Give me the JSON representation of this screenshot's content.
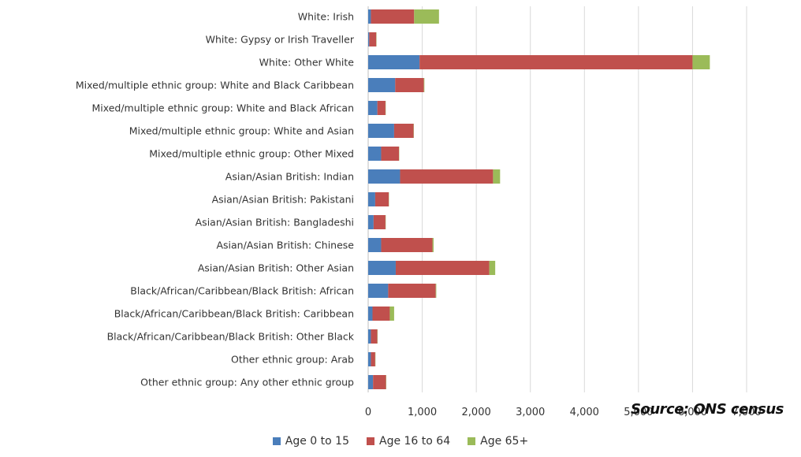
{
  "chart_data": {
    "type": "bar",
    "orientation": "horizontal",
    "stacked": true,
    "categories": [
      "White: Irish",
      "White: Gypsy or Irish Traveller",
      "White: Other White",
      "Mixed/multiple ethnic group: White and Black Caribbean",
      "Mixed/multiple ethnic group: White and Black African",
      "Mixed/multiple ethnic group: White and Asian",
      "Mixed/multiple ethnic group: Other Mixed",
      "Asian/Asian British: Indian",
      "Asian/Asian British: Pakistani",
      "Asian/Asian British: Bangladeshi",
      "Asian/Asian British: Chinese",
      "Asian/Asian British: Other Asian",
      "Black/African/Caribbean/Black British: African",
      "Black/African/Caribbean/Black British: Caribbean",
      "Black/African/Caribbean/Black British: Other Black",
      "Other ethnic group: Arab",
      "Other ethnic group: Any other ethnic group"
    ],
    "series": [
      {
        "name": "Age 0 to 15",
        "color": "#4a7ebb",
        "values": [
          50,
          20,
          950,
          500,
          170,
          480,
          240,
          590,
          130,
          100,
          240,
          510,
          370,
          80,
          50,
          50,
          90
        ]
      },
      {
        "name": "Age 16 to 64",
        "color": "#c0504d",
        "values": [
          800,
          130,
          5050,
          530,
          150,
          360,
          330,
          1720,
          250,
          220,
          950,
          1730,
          880,
          320,
          120,
          80,
          240
        ]
      },
      {
        "name": "Age 65+",
        "color": "#9bbb59",
        "values": [
          460,
          5,
          320,
          10,
          5,
          5,
          5,
          130,
          5,
          5,
          20,
          110,
          10,
          80,
          5,
          5,
          5
        ]
      }
    ],
    "xlim": [
      0,
      7000
    ],
    "xticks": [
      0,
      1000,
      2000,
      3000,
      4000,
      5000,
      6000,
      7000
    ],
    "xtick_labels": [
      "0",
      "1,000",
      "2,000",
      "3,000",
      "4,000",
      "5,000",
      "6,000",
      "7,000"
    ],
    "grid": "vertical",
    "legend_position": "bottom",
    "source_note": "Source: ONS census"
  }
}
